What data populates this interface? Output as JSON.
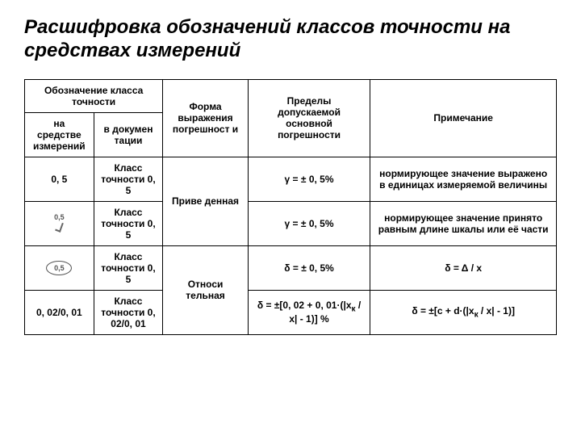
{
  "title": "Расшифровка обозначений классов точности на средствах измерений",
  "headers": {
    "designation": "Обозначение класса точности",
    "on_device": "на средстве измерений",
    "in_docs": "в докумен тации",
    "form": "Форма выражения погрешност и",
    "limits": "Пределы допускаемой основной погрешности",
    "note": "Примечание"
  },
  "rows": [
    {
      "device": "0, 5",
      "docs": "Класс точности 0, 5",
      "form": "Приве денная",
      "limits": "γ = ± 0, 5%",
      "note": "нормирующее значение выражено в единицах измеряемой величины"
    },
    {
      "device_symbol": "checkmark",
      "device_symbol_label": "0,5",
      "docs": "Класс точности 0, 5",
      "limits": "γ = ± 0, 5%",
      "note": "нормирующее значение принято равным длине шкалы или её части"
    },
    {
      "device_symbol": "circle",
      "device_symbol_label": "0,5",
      "docs": "Класс точности 0, 5",
      "form": "Относи тельная",
      "limits": "δ = ± 0, 5%",
      "note": "δ = Δ / x"
    },
    {
      "device": "0, 02/0, 01",
      "docs": "Класс точности 0, 02/0, 01",
      "limits_html": "δ = ±[0, 02 + 0, 01·(|x<span class=\"sub\">к</span> / x| - 1)] %",
      "note_html": "δ = ±[c + d·(|x<span class=\"sub\">к</span> / x| - 1)]"
    }
  ]
}
